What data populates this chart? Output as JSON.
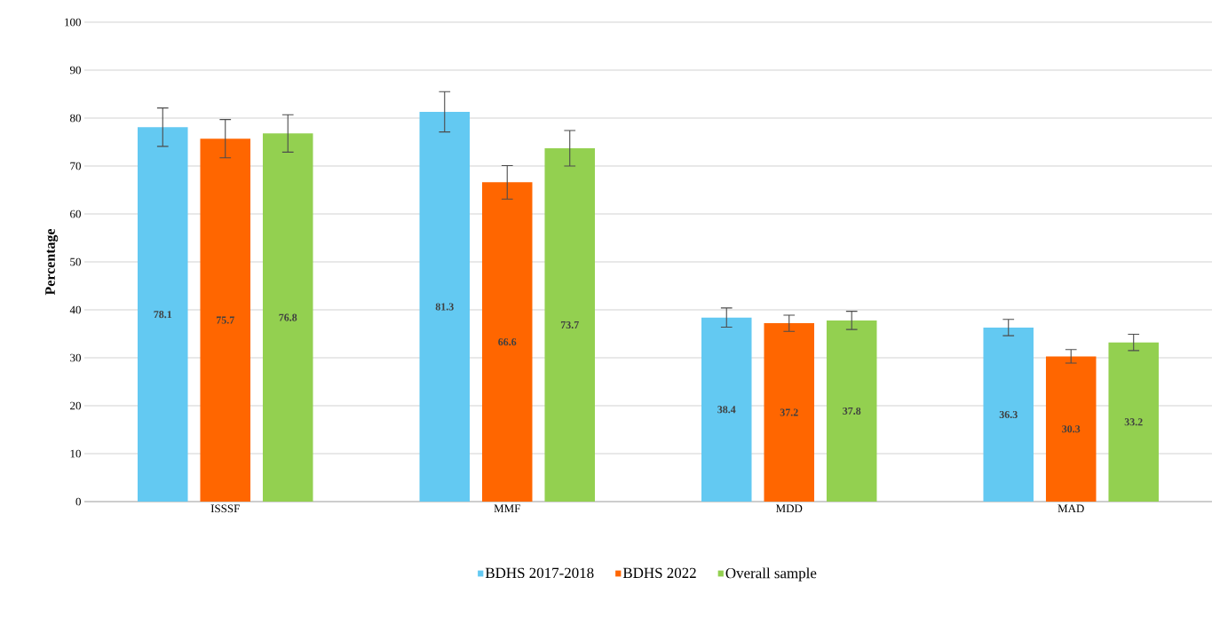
{
  "chart_data": {
    "type": "bar",
    "ylabel": "**Percentage**",
    "categories": [
      "ISSSF",
      "MMF",
      "MDD",
      "MAD"
    ],
    "series": [
      {
        "name": "BDHS 2017-2018",
        "color": "#63c9f2",
        "values": [
          78.1,
          81.3,
          38.4,
          36.3
        ],
        "errors": [
          4.0,
          4.2,
          2.0,
          1.7
        ]
      },
      {
        "name": "BDHS 2022",
        "color": "#ff6600",
        "values": [
          75.7,
          66.6,
          37.2,
          30.3
        ],
        "errors": [
          4.0,
          3.5,
          1.7,
          1.4
        ]
      },
      {
        "name": "Overall sample",
        "color": "#93d050",
        "values": [
          76.8,
          73.7,
          37.8,
          33.2
        ],
        "errors": [
          3.9,
          3.7,
          1.9,
          1.7
        ]
      }
    ],
    "ylim": [
      0,
      100
    ],
    "yticks": [
      0,
      10,
      20,
      30,
      40,
      50,
      60,
      70,
      80,
      90,
      100
    ],
    "grid": "y",
    "legend": "bottom",
    "data_labels": true
  }
}
